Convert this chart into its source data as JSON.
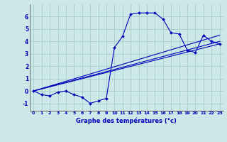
{
  "xlabel": "Graphe des températures (°c)",
  "background_color": "#cce8e8",
  "grid_color": "#aacccc",
  "line_color": "#0000bb",
  "xlim": [
    -0.5,
    23.5
  ],
  "ylim": [
    -1.6,
    7.0
  ],
  "xticks": [
    0,
    1,
    2,
    3,
    4,
    5,
    6,
    7,
    8,
    9,
    10,
    11,
    12,
    13,
    14,
    15,
    16,
    17,
    18,
    19,
    20,
    21,
    22,
    23
  ],
  "yticks": [
    -1,
    0,
    1,
    2,
    3,
    4,
    5,
    6
  ],
  "curve_x": [
    0,
    1,
    2,
    3,
    4,
    5,
    6,
    7,
    8,
    9,
    10,
    11,
    12,
    13,
    14,
    15,
    16,
    17,
    18,
    19,
    20,
    21,
    22,
    23
  ],
  "curve_y": [
    0.0,
    -0.3,
    -0.4,
    -0.1,
    0.0,
    -0.3,
    -0.5,
    -1.0,
    -0.8,
    -0.6,
    3.5,
    4.4,
    6.2,
    6.3,
    6.3,
    6.3,
    5.8,
    4.7,
    4.6,
    3.3,
    3.1,
    4.5,
    4.0,
    3.8
  ],
  "line1_x": [
    0,
    23
  ],
  "line1_y": [
    0.0,
    3.8
  ],
  "line2_x": [
    0,
    23
  ],
  "line2_y": [
    0.0,
    4.0
  ],
  "line3_x": [
    0,
    23
  ],
  "line3_y": [
    0.0,
    4.5
  ]
}
